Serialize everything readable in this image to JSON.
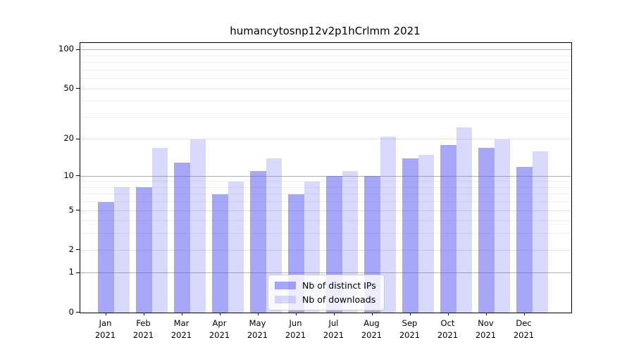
{
  "title": "humancytosnp12v2p1hCrlmm 2021",
  "colors": {
    "ips_bar": "rgba(80,80,245,0.50)",
    "downloads_bar": "rgba(80,80,245,0.22)",
    "grid_major": "#b4b4b4",
    "grid_mid": "#e3e3e3",
    "grid_minor": "#efefef",
    "spine": "#000000"
  },
  "legend": {
    "items": [
      {
        "label": "Nb of distinct IPs",
        "color_key": "ips_bar"
      },
      {
        "label": "Nb of downloads",
        "color_key": "downloads_bar"
      }
    ]
  },
  "chart_data": {
    "type": "bar",
    "title": "humancytosnp12v2p1hCrlmm 2021",
    "categories": [
      "Jan",
      "Feb",
      "Mar",
      "Apr",
      "May",
      "Jun",
      "Jul",
      "Aug",
      "Sep",
      "Oct",
      "Nov",
      "Dec"
    ],
    "year_label": "2021",
    "series": [
      {
        "name": "Nb of distinct IPs",
        "values": [
          6,
          8,
          13,
          7,
          11,
          7,
          10,
          10,
          14,
          18,
          17,
          12
        ]
      },
      {
        "name": "Nb of downloads",
        "values": [
          8,
          17,
          20,
          9,
          14,
          9,
          11,
          21,
          15,
          25,
          20,
          16
        ]
      }
    ],
    "yticks": [
      0,
      1,
      2,
      5,
      10,
      20,
      50,
      100
    ],
    "gridlines": {
      "major": [
        1,
        10,
        100
      ],
      "mid": [
        2,
        5,
        20,
        50
      ],
      "minor": [
        3,
        4,
        6,
        7,
        8,
        9,
        30,
        40,
        60,
        70,
        80,
        90
      ]
    },
    "scale": "log1p",
    "ylim": [
      0,
      113
    ],
    "grid": true,
    "legend_position": "lower center",
    "xlabel": "",
    "ylabel": ""
  }
}
